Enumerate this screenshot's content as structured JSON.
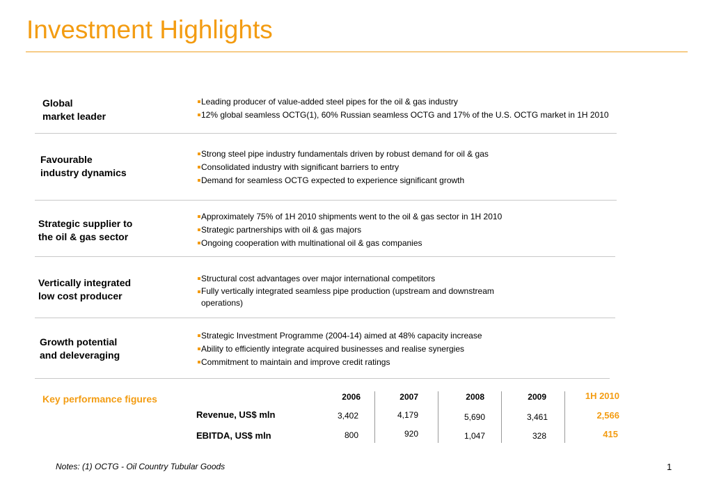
{
  "title": "Investment Highlights",
  "sections": [
    {
      "title": "Global\nmarket leader",
      "bullets": [
        "Leading producer of value-added steel pipes for the oil & gas industry",
        "12% global seamless OCTG(1), 60% Russian seamless OCTG and 17% of the U.S. OCTG market in 1H 2010"
      ]
    },
    {
      "title": "Favourable\nindustry dynamics",
      "bullets": [
        "Strong steel pipe industry fundamentals driven by robust demand for oil & gas",
        "Consolidated industry with significant barriers to entry",
        "Demand for seamless OCTG expected to experience significant growth"
      ]
    },
    {
      "title": "Strategic supplier to\nthe oil & gas sector",
      "bullets": [
        "Approximately 75% of 1H 2010 shipments went to the oil & gas sector in 1H 2010",
        "Strategic partnerships with oil & gas majors",
        "Ongoing cooperation with multinational oil & gas companies"
      ]
    },
    {
      "title": "Vertically integrated\nlow cost producer",
      "bullets": [
        "Structural cost advantages over major international competitors",
        "Fully vertically integrated seamless pipe production (upstream and downstream operations)"
      ]
    },
    {
      "title": "Growth potential\nand deleveraging",
      "bullets": [
        "Strategic Investment Programme (2004-14) aimed at 48% capacity increase",
        "Ability to efficiently integrate acquired businesses and realise synergies",
        "Commitment to maintain and improve credit ratings"
      ]
    }
  ],
  "kpi": {
    "title": "Key performance figures",
    "years": [
      "2006",
      "2007",
      "2008",
      "2009",
      "1H 2010"
    ],
    "rows": [
      {
        "label": "Revenue, US$ mln",
        "values": [
          "3,402",
          "4,179",
          "5,690",
          "3,461",
          "2,566"
        ]
      },
      {
        "label": "EBITDA, US$ mln",
        "values": [
          "800",
          "920",
          "1,047",
          "328",
          "415"
        ]
      }
    ]
  },
  "notes": "Notes: (1) OCTG - Oil Country Tubular Goods",
  "page_number": "1",
  "colors": {
    "accent": "#f39c12",
    "separator": "#c8c8c8"
  }
}
